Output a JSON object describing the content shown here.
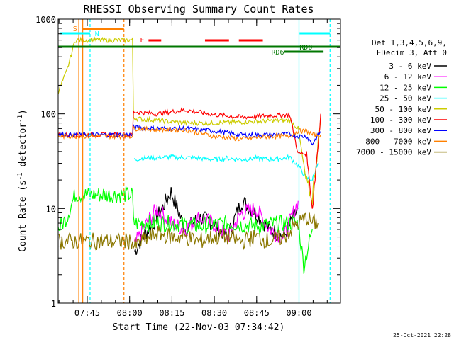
{
  "chart_data": {
    "type": "line",
    "title": "RHESSI Observing Summary Count Rates",
    "xlabel": "Start Time (22-Nov-03 07:34:42)",
    "ylabel_main": "Count Rate (s",
    "ylabel_sup1": "-1",
    "ylabel_mid": " detector",
    "ylabel_sup2": "-1",
    "ylabel_end": ")",
    "yscale": "log",
    "ylim": [
      1,
      1000
    ],
    "xlim_minutes": [
      0,
      100
    ],
    "x_ticks": [
      {
        "label": "07:45",
        "minute": 10.3
      },
      {
        "label": "08:00",
        "minute": 25.3
      },
      {
        "label": "08:15",
        "minute": 40.3
      },
      {
        "label": "08:30",
        "minute": 55.3
      },
      {
        "label": "08:45",
        "minute": 70.3
      },
      {
        "label": "09:00",
        "minute": 85.3
      }
    ],
    "y_ticks": [
      {
        "label": "1",
        "value": 1
      },
      {
        "label": "10",
        "value": 10
      },
      {
        "label": "100",
        "value": 100
      },
      {
        "label": "1000",
        "value": 1000
      }
    ],
    "legend_header": [
      "Det 1,3,4,5,6,9,",
      "FDecim 3, Att 0"
    ],
    "series": [
      {
        "name": "3 - 6 keV",
        "color": "#000000",
        "x": [
          27,
          30,
          35,
          40,
          45,
          50,
          55,
          60,
          65,
          70,
          75,
          80,
          85
        ],
        "y": [
          3.5,
          5,
          8,
          15,
          6,
          8,
          7,
          5,
          12,
          9,
          6,
          5,
          10
        ]
      },
      {
        "name": "6 - 12 keV",
        "color": "#ff00ff",
        "x": [
          27,
          30,
          35,
          40,
          45,
          50,
          55,
          60,
          65,
          70,
          75,
          80,
          85
        ],
        "y": [
          4,
          6,
          10,
          7,
          6,
          8,
          7,
          5,
          9,
          10,
          6,
          5,
          12
        ]
      },
      {
        "name": "12 - 25 keV",
        "color": "#00ff00",
        "x": [
          0,
          3,
          6,
          27,
          30,
          40,
          50,
          60,
          70,
          80,
          85,
          87,
          90
        ],
        "y": [
          6,
          8,
          14,
          7,
          7,
          7,
          6.5,
          7,
          6.5,
          7,
          7,
          2.5,
          6
        ]
      },
      {
        "name": "25 - 50 keV",
        "color": "#00ffff",
        "x": [
          27,
          30,
          40,
          50,
          55,
          60,
          65,
          70,
          75,
          80,
          82,
          85,
          88,
          90,
          92
        ],
        "y": [
          33,
          34,
          35,
          34,
          33,
          34,
          33,
          34,
          33,
          34,
          35,
          28,
          21,
          20,
          30
        ]
      },
      {
        "name": "50 - 100 keV",
        "color": "#cccc00",
        "x": [
          0,
          3,
          6,
          27,
          35,
          45,
          55,
          65,
          75,
          82,
          85,
          88,
          90,
          93
        ],
        "y": [
          170,
          280,
          600,
          90,
          85,
          80,
          80,
          82,
          84,
          86,
          70,
          18,
          13,
          90
        ]
      },
      {
        "name": "100 - 300 keV",
        "color": "#ff0000",
        "x": [
          0,
          6,
          27,
          35,
          45,
          55,
          65,
          75,
          82,
          85,
          88,
          90,
          93
        ],
        "y": [
          60,
          60,
          105,
          100,
          110,
          98,
          92,
          96,
          98,
          38,
          38,
          10,
          100
        ]
      },
      {
        "name": "300 - 800 keV",
        "color": "#0000ff",
        "x": [
          0,
          6,
          27,
          35,
          45,
          55,
          65,
          75,
          82,
          85,
          88,
          90,
          93
        ],
        "y": [
          60,
          60,
          72,
          70,
          70,
          66,
          60,
          60,
          61,
          58,
          58,
          48,
          65
        ]
      },
      {
        "name": "800 - 7000 keV",
        "color": "#ff8000",
        "x": [
          0,
          6,
          27,
          35,
          45,
          55,
          65,
          75,
          82,
          85,
          88,
          90,
          93
        ],
        "y": [
          58,
          58,
          70,
          68,
          68,
          58,
          54,
          58,
          58,
          66,
          66,
          60,
          60
        ]
      },
      {
        "name": "7000 - 15000 keV",
        "color": "#8b7700",
        "x": [
          0,
          3,
          6,
          27,
          30,
          35,
          40,
          45,
          50,
          55,
          60,
          65,
          70,
          75,
          80,
          85,
          88,
          90,
          92
        ],
        "y": [
          4.5,
          4.5,
          4.5,
          4,
          4.5,
          5.5,
          5,
          5,
          4.5,
          5,
          5,
          4.5,
          5,
          4.5,
          5,
          7,
          8,
          7,
          7
        ]
      }
    ],
    "annotations": {
      "S": {
        "label": "S",
        "color": "#ff8000"
      },
      "N": {
        "label": "N",
        "color": "#00ffff"
      },
      "F": {
        "label": "F",
        "color": "#ff0000"
      },
      "RD0": {
        "label": "RD0",
        "color": "#007700"
      },
      "RD6": {
        "label": "RD6",
        "color": "#007700"
      }
    },
    "timestamp": "25-Oct-2021 22:28"
  }
}
